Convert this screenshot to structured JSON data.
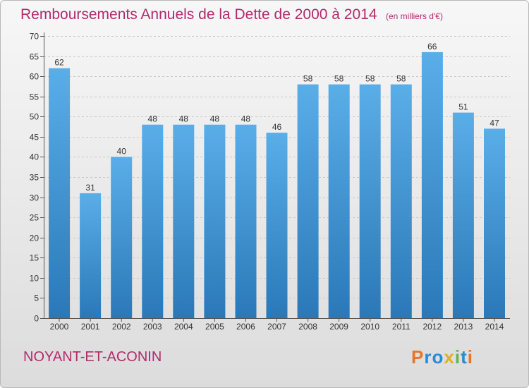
{
  "header": {
    "title": "Remboursements Annuels de la Dette de 2000 à 2014",
    "unit": "(en milliers d'€)"
  },
  "footer": {
    "commune": "NOYANT-ET-ACONIN",
    "logo_text": "Proxiti"
  },
  "colors": {
    "title": "#b22a6c",
    "bar_top": "#5aaee8",
    "bar_bottom": "#2a78b8",
    "grid": "#c8c8c8"
  },
  "chart_data": {
    "type": "bar",
    "title": "Remboursements Annuels de la Dette de 2000 à 2014",
    "xlabel": "",
    "ylabel": "",
    "ylim": [
      0,
      70
    ],
    "yticks": [
      0,
      5,
      10,
      15,
      20,
      25,
      30,
      35,
      40,
      45,
      50,
      55,
      60,
      65,
      70
    ],
    "grid": true,
    "categories": [
      "2000",
      "2001",
      "2002",
      "2003",
      "2004",
      "2005",
      "2006",
      "2007",
      "2008",
      "2009",
      "2010",
      "2011",
      "2012",
      "2013",
      "2014"
    ],
    "values": [
      62,
      31,
      40,
      48,
      48,
      48,
      48,
      46,
      58,
      58,
      58,
      58,
      66,
      51,
      47
    ]
  }
}
